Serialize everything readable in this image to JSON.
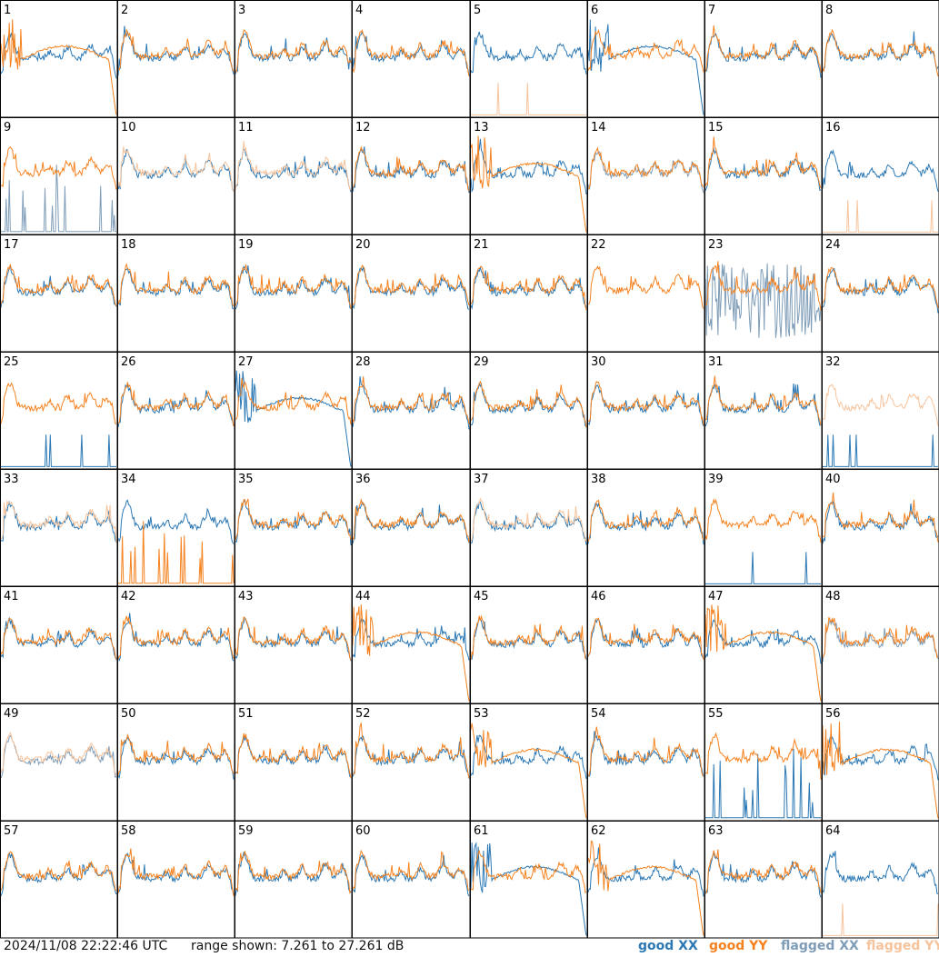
{
  "footer": {
    "timestamp": "2024/11/08 22:22:46 UTC",
    "range_text": "range shown: 7.261 to 27.261 dB"
  },
  "legend": {
    "good_xx": {
      "label": "good",
      "pol": "XX",
      "color": "#2b78b4"
    },
    "good_yy": {
      "label": "good",
      "pol": "YY",
      "color": "#f5821f"
    },
    "flagged_xx": {
      "label": "flagged",
      "pol": "XX",
      "color": "#7f9db8"
    },
    "flagged_yy": {
      "label": "flagged",
      "pol": "YY",
      "color": "#f7c39b"
    }
  },
  "chart_data": {
    "type": "line",
    "grid": {
      "rows": 8,
      "cols": 8
    },
    "ylim": [
      7.261,
      27.261
    ],
    "yunit": "dB",
    "panel_labels": [
      "1",
      "2",
      "3",
      "4",
      "5",
      "6",
      "7",
      "8",
      "9",
      "10",
      "11",
      "12",
      "13",
      "14",
      "15",
      "16",
      "17",
      "18",
      "19",
      "20",
      "21",
      "22",
      "23",
      "24",
      "25",
      "26",
      "27",
      "28",
      "29",
      "30",
      "31",
      "32",
      "33",
      "34",
      "35",
      "36",
      "37",
      "38",
      "39",
      "40",
      "41",
      "42",
      "43",
      "44",
      "45",
      "46",
      "47",
      "48",
      "49",
      "50",
      "51",
      "52",
      "53",
      "54",
      "55",
      "56",
      "57",
      "58",
      "59",
      "60",
      "61",
      "62",
      "63",
      "64"
    ],
    "series": [
      {
        "name": "good XX",
        "color": "#2b78b4"
      },
      {
        "name": "good YY",
        "color": "#f5821f"
      },
      {
        "name": "flagged XX",
        "color": "#7f9db8"
      },
      {
        "name": "flagged YY",
        "color": "#f7c39b"
      }
    ],
    "xx_color": {
      "1": "good",
      "2": "good",
      "3": "good",
      "4": "good",
      "5": "good",
      "6": "good",
      "7": "good",
      "8": "good",
      "9": "flagged",
      "10": "good",
      "11": "good",
      "12": "good",
      "13": "good",
      "14": "flagged",
      "15": "good",
      "16": "good",
      "17": "good",
      "18": "good",
      "19": "good",
      "20": "good",
      "21": "good",
      "22": "good",
      "23": "flagged",
      "24": "good",
      "25": "good",
      "26": "good",
      "27": "good",
      "28": "good",
      "29": "good",
      "30": "good",
      "31": "good",
      "32": "good",
      "33": "good",
      "34": "good",
      "35": "good",
      "36": "good",
      "37": "good",
      "38": "good",
      "39": "good",
      "40": "good",
      "41": "good",
      "42": "good",
      "43": "good",
      "44": "good",
      "45": "good",
      "46": "good",
      "47": "good",
      "48": "flagged",
      "49": "flagged",
      "50": "good",
      "51": "good",
      "52": "good",
      "53": "good",
      "54": "good",
      "55": "good",
      "56": "good",
      "57": "good",
      "58": "good",
      "59": "good",
      "60": "good",
      "61": "good",
      "62": "good",
      "63": "good",
      "64": "good"
    },
    "yy_color": {
      "1": "good",
      "2": "good",
      "3": "good",
      "4": "good",
      "5": "flagged",
      "6": "good",
      "7": "good",
      "8": "good",
      "9": "good",
      "10": "flagged",
      "11": "flagged",
      "12": "good",
      "13": "good",
      "14": "good",
      "15": "good",
      "16": "flagged",
      "17": "good",
      "18": "good",
      "19": "good",
      "20": "good",
      "21": "good",
      "22": "good",
      "23": "good",
      "24": "good",
      "25": "good",
      "26": "good",
      "27": "good",
      "28": "good",
      "29": "good",
      "30": "good",
      "31": "good",
      "32": "flagged",
      "33": "flagged",
      "34": "good",
      "35": "good",
      "36": "good",
      "37": "flagged",
      "38": "good",
      "39": "good",
      "40": "good",
      "41": "good",
      "42": "good",
      "43": "good",
      "44": "good",
      "45": "good",
      "46": "good",
      "47": "good",
      "48": "good",
      "49": "flagged",
      "50": "good",
      "51": "good",
      "52": "good",
      "53": "good",
      "54": "good",
      "55": "good",
      "56": "good",
      "57": "good",
      "58": "good",
      "59": "good",
      "60": "good",
      "61": "good",
      "62": "good",
      "63": "good",
      "64": "flagged"
    },
    "xx_type": {
      "1": "typ",
      "2": "typ",
      "3": "typ",
      "4": "typ",
      "5": "typ",
      "6": "deg",
      "7": "typ",
      "8": "typ",
      "9": "spikes",
      "10": "typ",
      "11": "typ",
      "12": "typ",
      "13": "typ",
      "14": "typ",
      "15": "typ",
      "16": "typ",
      "17": "typ",
      "18": "typ",
      "19": "typ",
      "20": "typ",
      "21": "typ",
      "22": "none",
      "23": "noisy",
      "24": "typ",
      "25": "flat",
      "26": "typ",
      "27": "deg",
      "28": "typ",
      "29": "typ",
      "30": "typ",
      "31": "typ",
      "32": "flat",
      "33": "typ",
      "34": "typ",
      "35": "typ",
      "36": "typ",
      "37": "typ",
      "38": "typ",
      "39": "flat",
      "40": "typ",
      "41": "typ",
      "42": "typ",
      "43": "typ",
      "44": "typ",
      "45": "typ",
      "46": "typ",
      "47": "typ",
      "48": "typ",
      "49": "typ",
      "50": "typ",
      "51": "typ",
      "52": "typ",
      "53": "typ",
      "54": "typ",
      "55": "spikes",
      "56": "typ",
      "57": "typ",
      "58": "typ",
      "59": "typ",
      "60": "typ",
      "61": "deg",
      "62": "typ",
      "63": "typ",
      "64": "typ"
    },
    "yy_type": {
      "1": "deg",
      "2": "typ",
      "3": "typ",
      "4": "typ",
      "5": "flat",
      "6": "typ",
      "7": "typ",
      "8": "typ",
      "9": "typ",
      "10": "typ",
      "11": "typ",
      "12": "typ",
      "13": "deg",
      "14": "typ",
      "15": "typ",
      "16": "flat",
      "17": "typ",
      "18": "typ",
      "19": "typ",
      "20": "typ",
      "21": "typ",
      "22": "typ",
      "23": "typ",
      "24": "typ",
      "25": "typ",
      "26": "typ",
      "27": "typ",
      "28": "typ",
      "29": "typ",
      "30": "typ",
      "31": "typ",
      "32": "typ",
      "33": "typ",
      "34": "spikes",
      "35": "typ",
      "36": "typ",
      "37": "typ",
      "38": "typ",
      "39": "typ",
      "40": "typ",
      "41": "typ",
      "42": "typ",
      "43": "typ",
      "44": "deg",
      "45": "typ",
      "46": "typ",
      "47": "deg",
      "48": "typ",
      "49": "typ",
      "50": "typ",
      "51": "typ",
      "52": "typ",
      "53": "deg",
      "54": "typ",
      "55": "typ",
      "56": "deg",
      "57": "typ",
      "58": "typ",
      "59": "typ",
      "60": "typ",
      "61": "typ",
      "62": "deg",
      "63": "typ",
      "64": "flat"
    }
  }
}
